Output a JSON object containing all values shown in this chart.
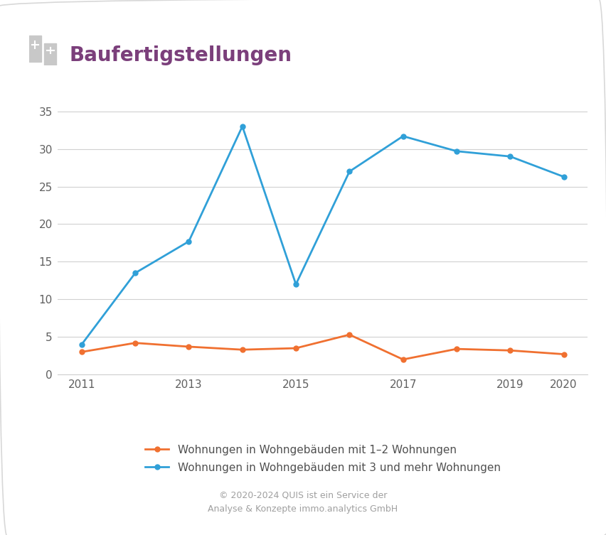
{
  "title": "Baufertigstellungen",
  "years": [
    2011,
    2012,
    2013,
    2014,
    2015,
    2016,
    2017,
    2018,
    2019,
    2020
  ],
  "series_1_2": [
    3.0,
    4.2,
    3.7,
    3.3,
    3.5,
    5.3,
    2.0,
    3.4,
    3.2,
    2.7
  ],
  "series_3plus": [
    4.0,
    13.5,
    17.7,
    33.0,
    12.0,
    27.0,
    31.7,
    29.7,
    29.0,
    26.3
  ],
  "color_1_2": "#f07030",
  "color_3plus": "#30a0d8",
  "line_width": 2.0,
  "marker": "o",
  "marker_size": 5,
  "yticks": [
    0,
    5,
    10,
    15,
    20,
    25,
    30,
    35
  ],
  "ylim": [
    0,
    37
  ],
  "legend_label_1_2": "Wohnungen in Wohngebäuden mit 1–2 Wohnungen",
  "legend_label_3plus": "Wohnungen in Wohngebäuden mit 3 und mehr Wohnungen",
  "footer_line1": "© 2020-2024 QUIS ist ein Service der",
  "footer_line2": "Analyse & Konzepte immo.analytics GmbH",
  "title_color": "#7b3f7b",
  "background_color": "#ffffff",
  "grid_color": "#d0d0d0",
  "footer_color": "#a0a0a0",
  "legend_text_color": "#505050",
  "tick_color": "#606060",
  "xticks": [
    2011,
    2013,
    2015,
    2017,
    2019,
    2020
  ],
  "border_color": "#d8d8d8",
  "icon_color_light": "#c8c8c8",
  "icon_color_dark": "#b0b0b0"
}
